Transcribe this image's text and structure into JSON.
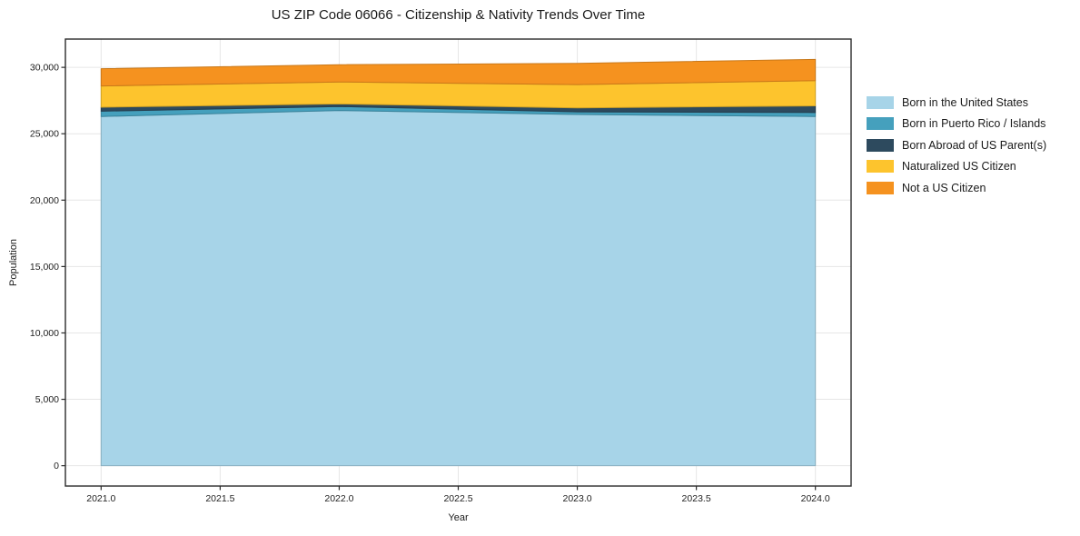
{
  "chart_data": {
    "type": "area",
    "stacked": true,
    "title": "US ZIP Code 06066 - Citizenship & Nativity Trends Over Time",
    "xlabel": "Year",
    "ylabel": "Population",
    "x": [
      2021,
      2022,
      2023,
      2024
    ],
    "x_ticks": [
      2021.0,
      2021.5,
      2022.0,
      2022.5,
      2023.0,
      2023.5,
      2024.0
    ],
    "x_tick_labels": [
      "2021.0",
      "2021.5",
      "2022.0",
      "2022.5",
      "2023.0",
      "2023.5",
      "2024.0"
    ],
    "y_ticks": [
      0,
      5000,
      10000,
      15000,
      20000,
      25000,
      30000
    ],
    "y_tick_labels": [
      "0",
      "5,000",
      "10,000",
      "15,000",
      "20,000",
      "25,000",
      "30,000"
    ],
    "xlim": [
      2020.85,
      2024.15
    ],
    "ylim": [
      -1530,
      32130
    ],
    "grid": true,
    "legend_position": "right",
    "series": [
      {
        "name": "Born in the United States",
        "color": "#a7d4e8",
        "values": [
          26300,
          26750,
          26450,
          26300
        ]
      },
      {
        "name": "Born in Puerto Rico / Islands",
        "color": "#45a0bd",
        "values": [
          400,
          300,
          200,
          300
        ]
      },
      {
        "name": "Born Abroad of US Parent(s)",
        "color": "#2d4a5e",
        "values": [
          300,
          200,
          300,
          500
        ]
      },
      {
        "name": "Naturalized US Citizen",
        "color": "#fdc42d",
        "values": [
          1600,
          1650,
          1750,
          1900
        ]
      },
      {
        "name": "Not a US Citizen",
        "color": "#f5921f",
        "values": [
          1300,
          1300,
          1600,
          1600
        ]
      }
    ],
    "stacked_totals": [
      29900,
      30200,
      30300,
      30600
    ],
    "colors": {
      "grid": "#e6e6e6",
      "axis": "#2b2b2b",
      "tick_label": "#222222",
      "background": "#ffffff"
    }
  }
}
